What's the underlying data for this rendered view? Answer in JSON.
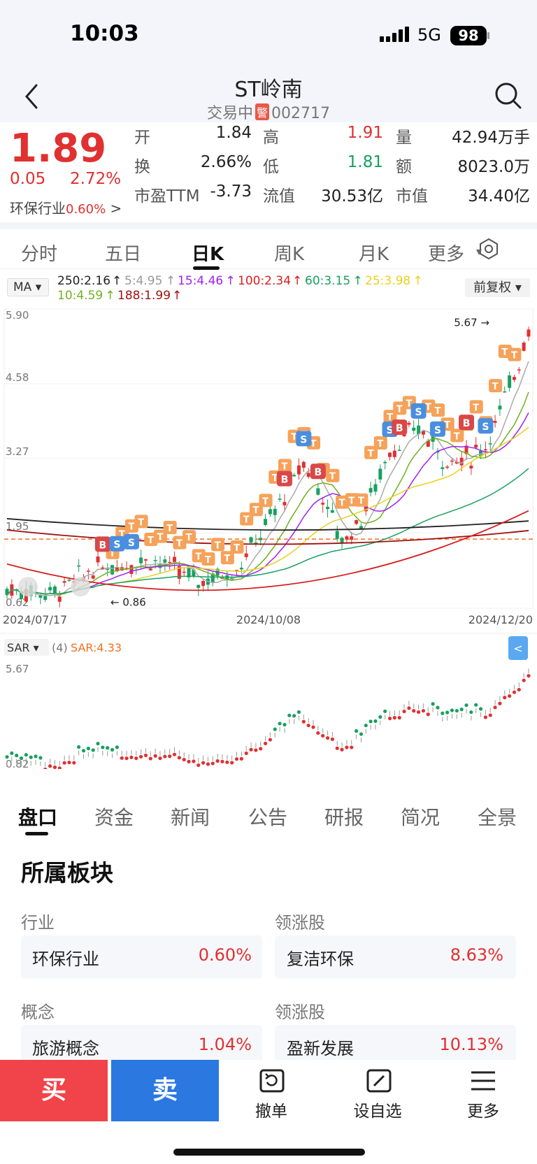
{
  "status": {
    "time": "10:03",
    "network": "5G",
    "battery": "98"
  },
  "header": {
    "title": "ST岭南",
    "state": "交易中",
    "warn_badge": "警",
    "code": "002717"
  },
  "quote": {
    "price": "1.89",
    "change": "0.05",
    "change_pct": "2.72%",
    "industry": "环保行业",
    "industry_pct": "0.60%",
    "rows": [
      [
        {
          "k": "开",
          "v": "1.84",
          "c": ""
        },
        {
          "k": "高",
          "v": "1.91",
          "c": "red"
        },
        {
          "k": "量",
          "v": "42.94万手",
          "c": ""
        }
      ],
      [
        {
          "k": "换",
          "v": "2.66%",
          "c": ""
        },
        {
          "k": "低",
          "v": "1.81",
          "c": "green"
        },
        {
          "k": "额",
          "v": "8023.0万",
          "c": ""
        }
      ],
      [
        {
          "k": "市盈TTM",
          "v": "-3.73",
          "c": ""
        },
        {
          "k": "流值",
          "v": "30.53亿",
          "c": ""
        },
        {
          "k": "市值",
          "v": "34.40亿",
          "c": ""
        }
      ]
    ]
  },
  "period_tabs": [
    "分时",
    "五日",
    "日K",
    "周K",
    "月K",
    "更多"
  ],
  "active_period": "日K",
  "ma_indicator": "MA",
  "ma_values": [
    {
      "t": "250:2.16",
      "color": "#222"
    },
    {
      "t": "5:4.95",
      "color": "#999"
    },
    {
      "t": "15:4.46",
      "color": "#a020f0"
    },
    {
      "t": "100:2.34",
      "color": "#d81e1e"
    },
    {
      "t": "60:3.15",
      "color": "#18a060"
    },
    {
      "t": "25:3.98",
      "color": "#e8d020"
    },
    {
      "t": "10:4.59",
      "color": "#70b020"
    },
    {
      "t": "188:1.99",
      "color": "#a01010"
    }
  ],
  "adjust": "前复权",
  "kchart": {
    "y_ticks": [
      "5.90",
      "4.58",
      "3.27",
      "1.95",
      "0.62"
    ],
    "x_dates": [
      "2024/07/17",
      "2024/10/08",
      "2024/12/20"
    ],
    "max_label": "5.67",
    "min_label": "0.86"
  },
  "chart_data": {
    "type": "line",
    "title": "",
    "x": [
      "2024/07/17",
      "2024/10/08",
      "2024/12/20"
    ],
    "ylim": [
      0.62,
      5.9
    ],
    "series": [
      {
        "name": "250",
        "values": [
          2.2,
          2.0,
          2.16
        ]
      },
      {
        "name": "188",
        "values": [
          2.0,
          1.75,
          1.99
        ]
      },
      {
        "name": "100",
        "values": [
          1.4,
          1.0,
          2.34
        ]
      }
    ]
  },
  "sar": {
    "label": "SAR",
    "param": "(4)",
    "value": "SAR:4.33",
    "top": "5.67",
    "bottom": "0.82"
  },
  "info_tabs": [
    "盘口",
    "资金",
    "新闻",
    "公告",
    "研报",
    "简况",
    "全景"
  ],
  "active_info_tab": "盘口",
  "section_title": "所属板块",
  "blocks": [
    {
      "left_label": "行业",
      "left_name": "环保行业",
      "left_pct": "0.60%",
      "right_label": "领涨股",
      "right_name": "复洁环保",
      "right_pct": "8.63%"
    },
    {
      "left_label": "概念",
      "left_name": "旅游概念",
      "left_pct": "1.04%",
      "right_label": "领涨股",
      "right_name": "盈新发展",
      "right_pct": "10.13%"
    }
  ],
  "bottom": {
    "buy": "买",
    "sell": "卖",
    "cancel": "撤单",
    "watch": "设自选",
    "more": "更多"
  }
}
